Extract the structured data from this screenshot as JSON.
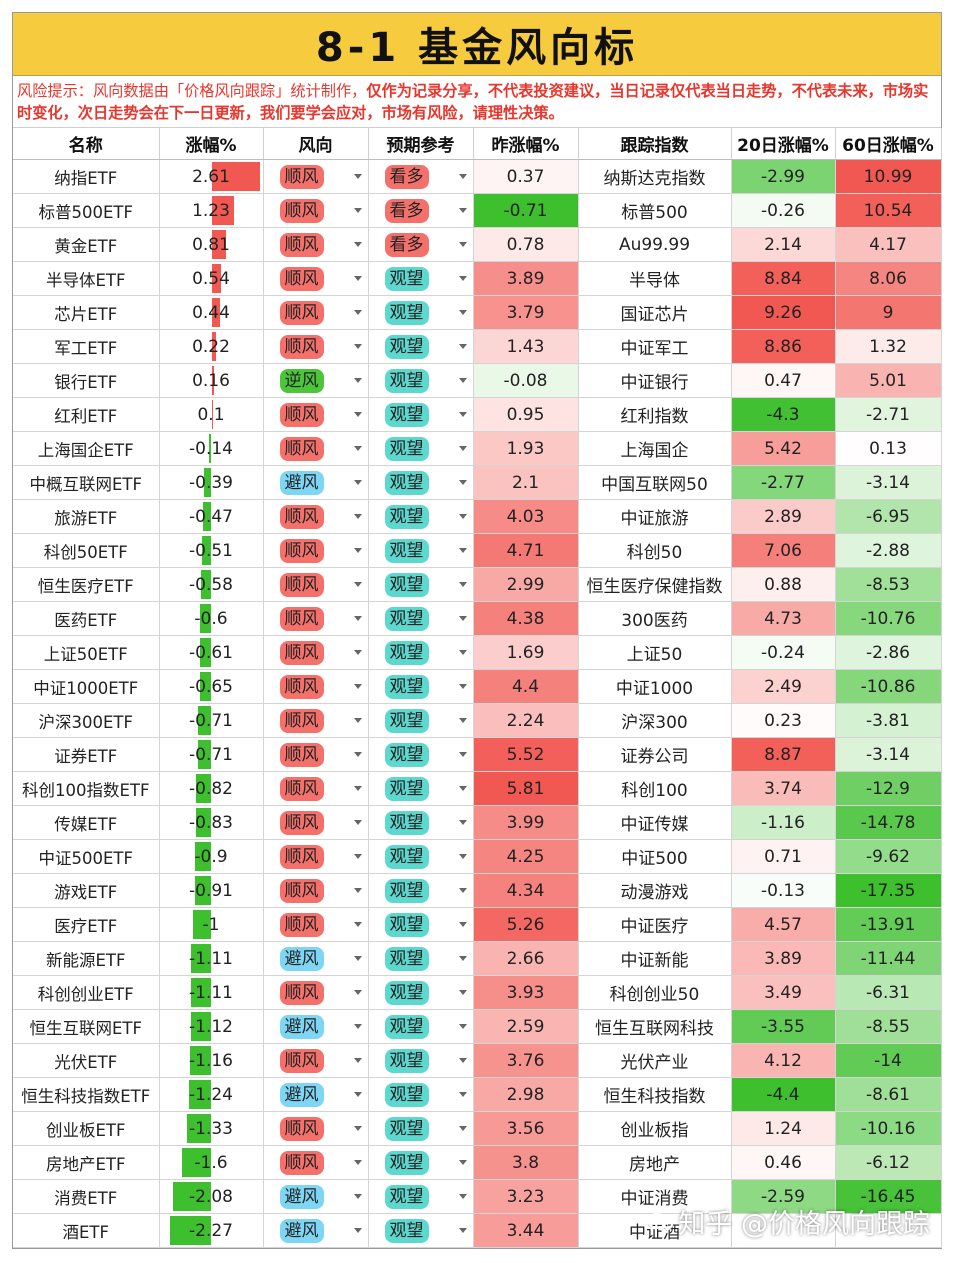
{
  "title": "8-1 基金风向标",
  "notice": {
    "normal": "风险提示：风向数据由「价格风向跟踪」统计制作，",
    "bold": "仅作为记录分享，不代表投资建议，当日记录仅代表当日走势，不代表未来，市场实时变化，次日走势会在下一日更新，我们要学会应对，市场有风险，请理性决策。"
  },
  "headers": [
    "名称",
    "涨幅%",
    "风向",
    "预期参考",
    "昨涨幅%",
    "跟踪指数",
    "20日涨幅%",
    "60日涨幅%"
  ],
  "colors": {
    "up": "#f25852",
    "down": "#3dbf2e",
    "pill_shun": "#f4716b",
    "pill_ni": "#4cc53a",
    "pill_bi": "#7dd6f4",
    "pill_kanduo": "#f4716b",
    "pill_guanwang": "#5dd8cf",
    "title_bg": "#f7cb3e"
  },
  "rows": [
    {
      "name": "纳指ETF",
      "chg": "2.61",
      "wind": "顺风",
      "expect": "看多",
      "prev": "0.37",
      "index": "纳斯达克指数",
      "d20": "-2.99",
      "d60": "10.99"
    },
    {
      "name": "标普500ETF",
      "chg": "1.23",
      "wind": "顺风",
      "expect": "看多",
      "prev": "-0.71",
      "index": "标普500",
      "d20": "-0.26",
      "d60": "10.54"
    },
    {
      "name": "黄金ETF",
      "chg": "0.81",
      "wind": "顺风",
      "expect": "看多",
      "prev": "0.78",
      "index": "Au99.99",
      "d20": "2.14",
      "d60": "4.17"
    },
    {
      "name": "半导体ETF",
      "chg": "0.54",
      "wind": "顺风",
      "expect": "观望",
      "prev": "3.89",
      "index": "半导体",
      "d20": "8.84",
      "d60": "8.06"
    },
    {
      "name": "芯片ETF",
      "chg": "0.44",
      "wind": "顺风",
      "expect": "观望",
      "prev": "3.79",
      "index": "国证芯片",
      "d20": "9.26",
      "d60": "9"
    },
    {
      "name": "军工ETF",
      "chg": "0.22",
      "wind": "顺风",
      "expect": "观望",
      "prev": "1.43",
      "index": "中证军工",
      "d20": "8.86",
      "d60": "1.32"
    },
    {
      "name": "银行ETF",
      "chg": "0.16",
      "wind": "逆风",
      "expect": "观望",
      "prev": "-0.08",
      "index": "中证银行",
      "d20": "0.47",
      "d60": "5.01"
    },
    {
      "name": "红利ETF",
      "chg": "0.1",
      "wind": "顺风",
      "expect": "观望",
      "prev": "0.95",
      "index": "红利指数",
      "d20": "-4.3",
      "d60": "-2.71"
    },
    {
      "name": "上海国企ETF",
      "chg": "-0.14",
      "wind": "顺风",
      "expect": "观望",
      "prev": "1.93",
      "index": "上海国企",
      "d20": "5.42",
      "d60": "0.13"
    },
    {
      "name": "中概互联网ETF",
      "chg": "-0.39",
      "wind": "避风",
      "expect": "观望",
      "prev": "2.1",
      "index": "中国互联网50",
      "d20": "-2.77",
      "d60": "-3.14"
    },
    {
      "name": "旅游ETF",
      "chg": "-0.47",
      "wind": "顺风",
      "expect": "观望",
      "prev": "4.03",
      "index": "中证旅游",
      "d20": "2.89",
      "d60": "-6.95"
    },
    {
      "name": "科创50ETF",
      "chg": "-0.51",
      "wind": "顺风",
      "expect": "观望",
      "prev": "4.71",
      "index": "科创50",
      "d20": "7.06",
      "d60": "-2.88"
    },
    {
      "name": "恒生医疗ETF",
      "chg": "-0.58",
      "wind": "顺风",
      "expect": "观望",
      "prev": "2.99",
      "index": "恒生医疗保健指数",
      "d20": "0.88",
      "d60": "-8.53"
    },
    {
      "name": "医药ETF",
      "chg": "-0.6",
      "wind": "顺风",
      "expect": "观望",
      "prev": "4.38",
      "index": "300医药",
      "d20": "4.73",
      "d60": "-10.76"
    },
    {
      "name": "上证50ETF",
      "chg": "-0.61",
      "wind": "顺风",
      "expect": "观望",
      "prev": "1.69",
      "index": "上证50",
      "d20": "-0.24",
      "d60": "-2.86"
    },
    {
      "name": "中证1000ETF",
      "chg": "-0.65",
      "wind": "顺风",
      "expect": "观望",
      "prev": "4.4",
      "index": "中证1000",
      "d20": "2.49",
      "d60": "-10.86"
    },
    {
      "name": "沪深300ETF",
      "chg": "-0.71",
      "wind": "顺风",
      "expect": "观望",
      "prev": "2.24",
      "index": "沪深300",
      "d20": "0.23",
      "d60": "-3.81"
    },
    {
      "name": "证券ETF",
      "chg": "-0.71",
      "wind": "顺风",
      "expect": "观望",
      "prev": "5.52",
      "index": "证券公司",
      "d20": "8.87",
      "d60": "-3.14"
    },
    {
      "name": "科创100指数ETF",
      "chg": "-0.82",
      "wind": "顺风",
      "expect": "观望",
      "prev": "5.81",
      "index": "科创100",
      "d20": "3.74",
      "d60": "-12.9"
    },
    {
      "name": "传媒ETF",
      "chg": "-0.83",
      "wind": "顺风",
      "expect": "观望",
      "prev": "3.99",
      "index": "中证传媒",
      "d20": "-1.16",
      "d60": "-14.78"
    },
    {
      "name": "中证500ETF",
      "chg": "-0.9",
      "wind": "顺风",
      "expect": "观望",
      "prev": "4.25",
      "index": "中证500",
      "d20": "0.71",
      "d60": "-9.62"
    },
    {
      "name": "游戏ETF",
      "chg": "-0.91",
      "wind": "顺风",
      "expect": "观望",
      "prev": "4.34",
      "index": "动漫游戏",
      "d20": "-0.13",
      "d60": "-17.35"
    },
    {
      "name": "医疗ETF",
      "chg": "-1",
      "wind": "顺风",
      "expect": "观望",
      "prev": "5.26",
      "index": "中证医疗",
      "d20": "4.57",
      "d60": "-13.91"
    },
    {
      "name": "新能源ETF",
      "chg": "-1.11",
      "wind": "避风",
      "expect": "观望",
      "prev": "2.66",
      "index": "中证新能",
      "d20": "3.89",
      "d60": "-11.44"
    },
    {
      "name": "科创创业ETF",
      "chg": "-1.11",
      "wind": "顺风",
      "expect": "观望",
      "prev": "3.93",
      "index": "科创创业50",
      "d20": "3.49",
      "d60": "-6.31"
    },
    {
      "name": "恒生互联网ETF",
      "chg": "-1.12",
      "wind": "避风",
      "expect": "观望",
      "prev": "2.59",
      "index": "恒生互联网科技",
      "d20": "-3.55",
      "d60": "-8.55"
    },
    {
      "name": "光伏ETF",
      "chg": "-1.16",
      "wind": "顺风",
      "expect": "观望",
      "prev": "3.76",
      "index": "光伏产业",
      "d20": "4.12",
      "d60": "-14"
    },
    {
      "name": "恒生科技指数ETF",
      "chg": "-1.24",
      "wind": "避风",
      "expect": "观望",
      "prev": "2.98",
      "index": "恒生科技指数",
      "d20": "-4.4",
      "d60": "-8.61"
    },
    {
      "name": "创业板ETF",
      "chg": "-1.33",
      "wind": "顺风",
      "expect": "观望",
      "prev": "3.56",
      "index": "创业板指",
      "d20": "1.24",
      "d60": "-10.16"
    },
    {
      "name": "房地产ETF",
      "chg": "-1.6",
      "wind": "顺风",
      "expect": "观望",
      "prev": "3.8",
      "index": "房地产",
      "d20": "0.46",
      "d60": "-6.12"
    },
    {
      "name": "消费ETF",
      "chg": "-2.08",
      "wind": "避风",
      "expect": "观望",
      "prev": "3.23",
      "index": "中证消费",
      "d20": "-2.59",
      "d60": "-16.45"
    },
    {
      "name": "酒ETF",
      "chg": "-2.27",
      "wind": "避风",
      "expect": "观望",
      "prev": "3.44",
      "index": "中证酒",
      "d20": "",
      "d60": ""
    }
  ],
  "watermark": "知乎 @价格风向跟踪"
}
